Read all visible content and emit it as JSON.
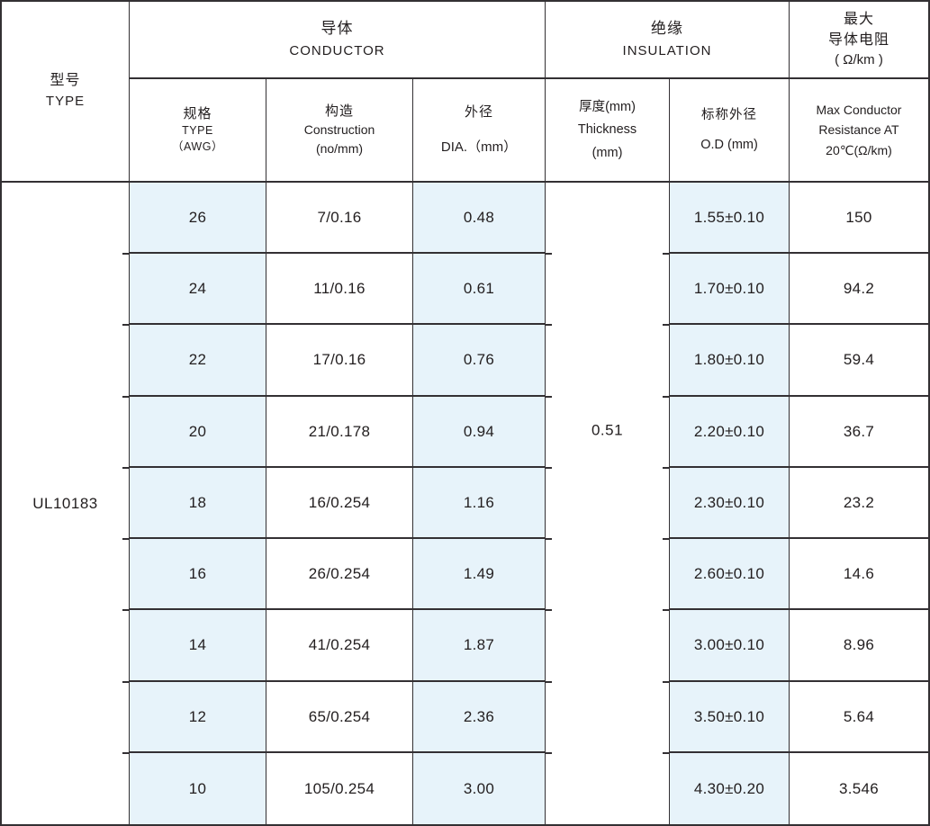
{
  "colors": {
    "highlight_blue": "#e7f3fa",
    "border": "#333033",
    "text": "#221e1f",
    "background": "#ffffff"
  },
  "header": {
    "type": {
      "zh": "型号",
      "en": "TYPE"
    },
    "conductor": {
      "zh": "导体",
      "en": "CONDUCTOR"
    },
    "insulation": {
      "zh": "绝缘",
      "en": "INSULATION"
    },
    "max_resistance": {
      "zh1": "最大",
      "zh2": "导体电阻",
      "unit": "( Ω/km )"
    }
  },
  "subheader": {
    "awg": {
      "zh": "规格",
      "en": "TYPE",
      "unit": "（AWG）"
    },
    "construction": {
      "zh": "构造",
      "en": "Construction",
      "unit": "(no/mm)"
    },
    "dia": {
      "zh": "外径",
      "en": "DIA.（mm）"
    },
    "thickness": {
      "zh": "厚度(mm)",
      "en": "Thickness",
      "unit": "(mm)"
    },
    "od": {
      "zh": "标称外径",
      "en": "O.D (mm)"
    },
    "max": {
      "l1": "Max Conductor",
      "l2": "Resistance AT",
      "l3": "20℃(Ω/km)"
    }
  },
  "body": {
    "type_value": "UL10183",
    "thickness_value": "0.51",
    "rows": [
      {
        "awg": "26",
        "construction": "7/0.16",
        "dia": "0.48",
        "od": "1.55±0.10",
        "resistance": "150"
      },
      {
        "awg": "24",
        "construction": "11/0.16",
        "dia": "0.61",
        "od": "1.70±0.10",
        "resistance": "94.2"
      },
      {
        "awg": "22",
        "construction": "17/0.16",
        "dia": "0.76",
        "od": "1.80±0.10",
        "resistance": "59.4"
      },
      {
        "awg": "20",
        "construction": "21/0.178",
        "dia": "0.94",
        "od": "2.20±0.10",
        "resistance": "36.7"
      },
      {
        "awg": "18",
        "construction": "16/0.254",
        "dia": "1.16",
        "od": "2.30±0.10",
        "resistance": "23.2"
      },
      {
        "awg": "16",
        "construction": "26/0.254",
        "dia": "1.49",
        "od": "2.60±0.10",
        "resistance": "14.6"
      },
      {
        "awg": "14",
        "construction": "41/0.254",
        "dia": "1.87",
        "od": "3.00±0.10",
        "resistance": "8.96"
      },
      {
        "awg": "12",
        "construction": "65/0.254",
        "dia": "2.36",
        "od": "3.50±0.10",
        "resistance": "5.64"
      },
      {
        "awg": "10",
        "construction": "105/0.254",
        "dia": "3.00",
        "od": "4.30±0.20",
        "resistance": "3.546"
      }
    ]
  }
}
